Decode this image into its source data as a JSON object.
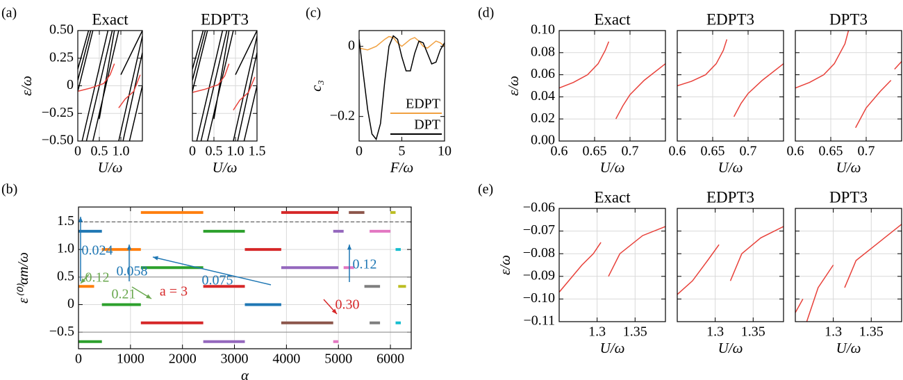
{
  "chart_data": [
    {
      "type": "line",
      "panel_label": "(a)",
      "title": "Exact",
      "xlabel": "U/ω",
      "ylabel": "ε/ω",
      "xlim": [
        0,
        1.5
      ],
      "ylim": [
        -0.5,
        0.5
      ],
      "xticks": [
        0,
        0.5,
        {
          "value": 1,
          "label": "1.0"
        }
      ],
      "yticks": [
        {
          "value": -0.5,
          "label": "−0.50"
        },
        {
          "value": -0.25,
          "label": "−0.25"
        },
        0,
        0.25,
        {
          "value": 0.5,
          "label": "0.50"
        }
      ],
      "grid": true,
      "series": [
        {
          "color": "#000000",
          "x": [
            0,
            0.35,
            null,
            0,
            0.3,
            null,
            0,
            0.25,
            null,
            0.1,
            0.7,
            null,
            0.2,
            0.8,
            null,
            0.35,
            0.95,
            null,
            0.5,
            0.85,
            null,
            0.95,
            1.5,
            null,
            1.05,
            1.5,
            null,
            1.2,
            1.5,
            null,
            1.0,
            1.5
          ],
          "values": [
            -0.05,
            0.5,
            null,
            0.05,
            0.5,
            null,
            0.15,
            0.5,
            null,
            -0.5,
            0.5,
            null,
            -0.5,
            0.5,
            null,
            -0.5,
            0.5,
            null,
            -0.3,
            0.5,
            null,
            -0.5,
            0.45,
            null,
            -0.5,
            0.3,
            null,
            -0.5,
            0,
            null,
            0.1,
            0.5
          ]
        },
        {
          "color": "#e8413a",
          "x": [
            0,
            0.3,
            0.6,
            0.75,
            0.85,
            null,
            0.95,
            1.1,
            1.3,
            1.45
          ],
          "values": [
            -0.05,
            -0.02,
            0.02,
            0.1,
            0.2,
            null,
            -0.2,
            -0.12,
            -0.05,
            0.1
          ]
        }
      ]
    },
    {
      "type": "line",
      "title": "EDPT3",
      "xlabel": "U/ω",
      "xlim": [
        0,
        1.5
      ],
      "ylim": [
        -0.5,
        0.5
      ],
      "xticks": [
        0,
        0.5,
        {
          "value": 1,
          "label": "1.0"
        },
        1.5
      ],
      "yticks": [
        -0.5,
        -0.25,
        0,
        0.25,
        0.5
      ],
      "ytick_labels": false,
      "grid": true,
      "series": [
        {
          "color": "#000000",
          "x": [
            0,
            0.35,
            null,
            0,
            0.3,
            null,
            0,
            0.25,
            null,
            0.1,
            0.7,
            null,
            0.2,
            0.8,
            null,
            0.35,
            0.95,
            null,
            0.5,
            0.85,
            null,
            0.95,
            1.5,
            null,
            1.05,
            1.5,
            null,
            1.2,
            1.5,
            null,
            1.0,
            1.5
          ],
          "values": [
            -0.05,
            0.5,
            null,
            0.05,
            0.5,
            null,
            0.15,
            0.5,
            null,
            -0.5,
            0.5,
            null,
            -0.5,
            0.5,
            null,
            -0.5,
            0.5,
            null,
            -0.3,
            0.5,
            null,
            -0.5,
            0.45,
            null,
            -0.5,
            0.3,
            null,
            -0.5,
            0,
            null,
            0.1,
            0.5
          ]
        },
        {
          "color": "#e8413a",
          "x": [
            0,
            0.3,
            0.6,
            0.75,
            0.85,
            null,
            0.95,
            1.1,
            1.3,
            1.45
          ],
          "values": [
            -0.06,
            -0.03,
            0.01,
            0.09,
            0.2,
            null,
            -0.22,
            -0.13,
            -0.06,
            0.08
          ]
        }
      ]
    },
    {
      "type": "line",
      "panel_label": "(c)",
      "xlabel": "F/ω",
      "ylabel": "c₃",
      "xlim": [
        0,
        10
      ],
      "ylim": [
        -0.27,
        0.045
      ],
      "xticks": [
        0,
        5,
        10
      ],
      "yticks": [
        {
          "value": -0.2,
          "label": "−0.2"
        },
        0
      ],
      "grid": false,
      "legend": "lower right",
      "series": [
        {
          "name": "EDPT",
          "color": "#f0a040",
          "x": [
            0,
            1,
            2,
            3,
            3.5,
            4,
            4.5,
            5,
            5.5,
            6,
            6.5,
            7,
            7.5,
            8,
            8.5,
            9,
            9.5,
            10
          ],
          "values": [
            -0.005,
            -0.01,
            0,
            0.02,
            0.028,
            0.025,
            0.01,
            0,
            0.01,
            0.02,
            0.025,
            0.015,
            0,
            -0.005,
            0.005,
            0.015,
            0.01,
            0
          ]
        },
        {
          "name": "DPT",
          "color": "#000000",
          "x": [
            0,
            0.5,
            1,
            1.5,
            2,
            2.5,
            3,
            3.5,
            4,
            4.5,
            5,
            5.5,
            6,
            6.5,
            7,
            7.5,
            8,
            8.5,
            9,
            9.5,
            10
          ],
          "values": [
            0.02,
            -0.08,
            -0.18,
            -0.25,
            -0.265,
            -0.22,
            -0.1,
            0,
            0.03,
            0.02,
            -0.03,
            -0.07,
            -0.07,
            -0.02,
            0.015,
            0.01,
            -0.02,
            -0.05,
            -0.045,
            -0.01,
            0.01
          ]
        }
      ]
    },
    {
      "type": "segments",
      "panel_label": "(b)",
      "xlabel": "α",
      "ylabel": "ε⁽⁰⁾αm/ω",
      "xlim": [
        0,
        6400
      ],
      "ylim": [
        -0.8,
        1.77
      ],
      "xticks": [
        0,
        1000,
        2000,
        3000,
        4000,
        5000,
        6000
      ],
      "yticks": [
        {
          "value": -0.5,
          "label": "−0.5"
        },
        0,
        0.5,
        {
          "value": 1,
          "label": "1.0"
        },
        1.5
      ],
      "grid": true,
      "reference_lines": [
        {
          "value": 1.5,
          "style": "dashed"
        },
        {
          "value": 0.5,
          "style": "solid"
        },
        {
          "value": -0.5,
          "style": "solid"
        }
      ],
      "series": [
        {
          "color": "#1f77b4",
          "x": [
            0,
            450,
            null,
            3200,
            3900
          ],
          "values": [
            1.33,
            1.33,
            null,
            0,
            0
          ]
        },
        {
          "color": "#ff7f0e",
          "x": [
            1200,
            2400,
            null,
            0,
            300,
            null,
            450,
            1200
          ],
          "values": [
            1.67,
            1.67,
            null,
            0.33,
            0.33,
            null,
            1,
            1
          ]
        },
        {
          "color": "#2ca02c",
          "x": [
            1200,
            2400,
            null,
            0,
            450,
            null,
            450,
            1200,
            null,
            2400,
            3200
          ],
          "values": [
            0.67,
            0.67,
            null,
            -0.67,
            -0.67,
            null,
            0,
            0,
            null,
            1.33,
            1.33
          ]
        },
        {
          "color": "#d62728",
          "x": [
            1200,
            2400,
            null,
            2400,
            3200,
            null,
            3200,
            3900,
            null,
            3900,
            5000
          ],
          "values": [
            -0.33,
            -0.33,
            null,
            0.33,
            0.33,
            null,
            1,
            1,
            null,
            1.67,
            1.67
          ]
        },
        {
          "color": "#9467bd",
          "x": [
            2400,
            3200,
            null,
            3900,
            5000,
            null,
            4900,
            5100
          ],
          "values": [
            -0.67,
            -0.67,
            null,
            0.67,
            0.67,
            null,
            1.33,
            1.33
          ]
        },
        {
          "color": "#8c564b",
          "x": [
            3900,
            4900,
            null,
            5200,
            5500
          ],
          "values": [
            -0.33,
            -0.33,
            null,
            1.67,
            1.67
          ]
        },
        {
          "color": "#e377c2",
          "x": [
            5600,
            6000,
            null,
            5100,
            5300,
            null,
            4900,
            5000
          ],
          "values": [
            1.33,
            1.33,
            null,
            0.67,
            0.67,
            null,
            -0.67,
            -0.67
          ]
        },
        {
          "color": "#7f7f7f",
          "x": [
            5500,
            5800,
            null,
            5600,
            5800
          ],
          "values": [
            0.33,
            0.33,
            null,
            -0.33,
            -0.33
          ]
        },
        {
          "color": "#bcbd22",
          "x": [
            6000,
            6100,
            null,
            6150,
            6300
          ],
          "values": [
            1.67,
            1.67,
            null,
            0.33,
            0.33
          ]
        },
        {
          "color": "#17becf",
          "x": [
            6100,
            6200,
            null,
            6100,
            6200
          ],
          "values": [
            1,
            1,
            null,
            -0.33,
            -0.33
          ]
        }
      ],
      "annotations": [
        {
          "text": "0.024",
          "color": "#1f77b4"
        },
        {
          "text": "0.058",
          "color": "#1f77b4"
        },
        {
          "text": "0.075",
          "color": "#1f77b4"
        },
        {
          "text": "0.12",
          "color": "#1f77b4"
        },
        {
          "text": "0.12",
          "color": "#6aa84f"
        },
        {
          "text": "0.21",
          "color": "#6aa84f"
        },
        {
          "text": "a = 3",
          "color": "#d62728"
        },
        {
          "text": "0.30",
          "color": "#d62728"
        }
      ]
    },
    {
      "type": "line",
      "panel_label": "(d)",
      "title": "Exact",
      "xlabel": "U/ω",
      "ylabel": "ε/ω",
      "xlim": [
        0.6,
        0.75
      ],
      "ylim": [
        0,
        0.1
      ],
      "xticks": [
        0.6,
        0.65,
        0.7
      ],
      "yticks": [
        {
          "value": 0,
          "label": "0.00"
        },
        0.02,
        0.04,
        0.06,
        0.08,
        {
          "value": 0.1,
          "label": "0.10"
        }
      ],
      "grid": true,
      "series": [
        {
          "color": "#e8413a",
          "x": [
            0.6,
            0.62,
            0.64,
            0.655,
            0.665,
            0.67,
            null,
            0.68,
            0.69,
            0.7,
            0.72,
            0.75
          ],
          "values": [
            0.048,
            0.053,
            0.06,
            0.07,
            0.082,
            0.09,
            null,
            0.02,
            0.032,
            0.042,
            0.055,
            0.07
          ]
        }
      ]
    },
    {
      "type": "line",
      "title": "EDPT3",
      "xlabel": "U/ω",
      "xlim": [
        0.6,
        0.75
      ],
      "ylim": [
        0,
        0.1
      ],
      "xticks": [
        0.6,
        0.65,
        0.7
      ],
      "yticks": [
        0,
        0.02,
        0.04,
        0.06,
        0.08,
        0.1
      ],
      "ytick_labels": false,
      "grid": true,
      "series": [
        {
          "color": "#e8413a",
          "x": [
            0.6,
            0.62,
            0.64,
            0.655,
            0.665,
            0.67,
            null,
            0.68,
            0.69,
            0.7,
            0.72,
            0.75
          ],
          "values": [
            0.05,
            0.054,
            0.06,
            0.07,
            0.082,
            0.092,
            null,
            0.022,
            0.034,
            0.043,
            0.055,
            0.07
          ]
        }
      ]
    },
    {
      "type": "line",
      "title": "DPT3",
      "xlabel": "U/ω",
      "xlim": [
        0.6,
        0.75
      ],
      "ylim": [
        0,
        0.1
      ],
      "xticks": [
        0.6,
        0.65,
        0.7
      ],
      "yticks": [
        0,
        0.02,
        0.04,
        0.06,
        0.08,
        0.1
      ],
      "ytick_labels": false,
      "grid": true,
      "series": [
        {
          "color": "#e8413a",
          "x": [
            0.6,
            0.62,
            0.64,
            0.655,
            0.67,
            0.675,
            null,
            0.685,
            0.7,
            0.72,
            0.735,
            null,
            0.74,
            0.75
          ],
          "values": [
            0.048,
            0.053,
            0.06,
            0.07,
            0.088,
            0.1,
            null,
            0.012,
            0.03,
            0.045,
            0.055,
            null,
            0.065,
            0.072
          ]
        }
      ]
    },
    {
      "type": "line",
      "panel_label": "(e)",
      "title": "Exact",
      "xlabel": "U/ω",
      "ylabel": "ε/ω",
      "xlim": [
        1.25,
        1.39
      ],
      "ylim": [
        -0.11,
        -0.06
      ],
      "xticks": [
        1.3,
        1.35
      ],
      "yticks": [
        {
          "value": -0.11,
          "label": "−0.11"
        },
        {
          "value": -0.1,
          "label": "−0.10"
        },
        {
          "value": -0.09,
          "label": "−0.09"
        },
        {
          "value": -0.08,
          "label": "−0.08"
        },
        {
          "value": -0.07,
          "label": "−0.07"
        },
        {
          "value": -0.06,
          "label": "−0.06"
        }
      ],
      "grid": true,
      "series": [
        {
          "color": "#e8413a",
          "x": [
            1.25,
            1.28,
            1.295,
            1.305,
            null,
            1.315,
            1.33,
            1.36,
            1.39
          ],
          "values": [
            -0.097,
            -0.085,
            -0.08,
            -0.075,
            null,
            -0.09,
            -0.08,
            -0.072,
            -0.068
          ]
        }
      ]
    },
    {
      "type": "line",
      "title": "EDPT3",
      "xlabel": "U/ω",
      "xlim": [
        1.25,
        1.39
      ],
      "ylim": [
        -0.11,
        -0.06
      ],
      "xticks": [
        1.3,
        1.35
      ],
      "yticks": [
        -0.11,
        -0.1,
        -0.09,
        -0.08,
        -0.07,
        -0.06
      ],
      "ytick_labels": false,
      "grid": true,
      "series": [
        {
          "color": "#e8413a",
          "x": [
            1.25,
            1.27,
            1.29,
            1.305,
            null,
            1.32,
            1.335,
            1.36,
            1.39
          ],
          "values": [
            -0.098,
            -0.092,
            -0.083,
            -0.076,
            null,
            -0.092,
            -0.08,
            -0.073,
            -0.068
          ]
        }
      ]
    },
    {
      "type": "line",
      "title": "DPT3",
      "xlabel": "U/ω",
      "xlim": [
        1.25,
        1.39
      ],
      "ylim": [
        -0.11,
        -0.06
      ],
      "xticks": [
        1.3,
        1.35
      ],
      "yticks": [
        -0.11,
        -0.1,
        -0.09,
        -0.08,
        -0.07,
        -0.06
      ],
      "ytick_labels": false,
      "grid": true,
      "series": [
        {
          "color": "#e8413a",
          "x": [
            1.25,
            1.26,
            null,
            1.265,
            1.28,
            1.3,
            null,
            1.315,
            1.33,
            1.36,
            1.39
          ],
          "values": [
            -0.106,
            -0.1,
            null,
            -0.11,
            -0.095,
            -0.085,
            null,
            -0.095,
            -0.083,
            -0.075,
            -0.067
          ]
        }
      ]
    }
  ]
}
